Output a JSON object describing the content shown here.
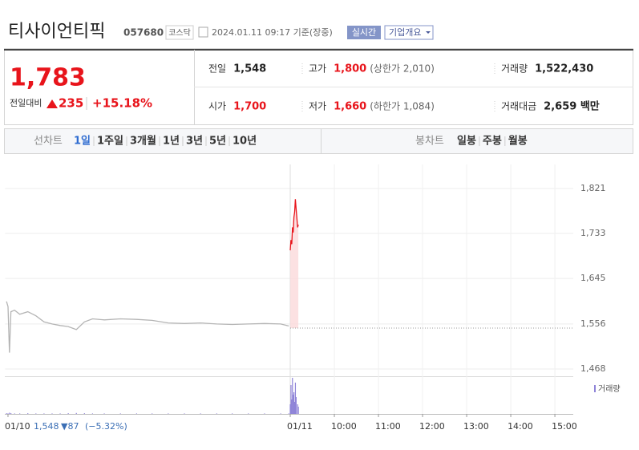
{
  "header": {
    "name": "티사이언티픽",
    "code": "057680",
    "market": "코스닥",
    "timestamp": "2024.01.11 09:17 기준(장중)",
    "realtime": "실시간",
    "company": "기업개요"
  },
  "quote": {
    "price": "1,783",
    "change_label": "전일대비",
    "change": "235",
    "change_pct": "+15.18%",
    "stats": [
      {
        "label": "전일",
        "value": "1,548"
      },
      {
        "label": "고가",
        "value": "1,800",
        "note": "(상한가 2,010)"
      },
      {
        "label": "거래량",
        "value": "1,522,430"
      },
      {
        "label": "시가",
        "value": "1,700"
      },
      {
        "label": "저가",
        "value": "1,660",
        "note": "(하한가 1,084)"
      },
      {
        "label": "거래대금",
        "value": "2,659 백만"
      }
    ]
  },
  "tabs": {
    "line_label": "선차트",
    "periods": [
      "1일",
      "1주일",
      "3개월",
      "1년",
      "3년",
      "5년",
      "10년"
    ],
    "candle_label": "봉차트",
    "candles": [
      "일봉",
      "주봉",
      "월봉"
    ]
  },
  "footer": {
    "date": "01/10",
    "price": "1,548",
    "change": "▼87",
    "pct": "(−5.32%)"
  },
  "chart_data": {
    "type": "line",
    "x": [
      -386,
      -384,
      -382,
      -380,
      -375,
      -368,
      -357,
      -346,
      -335,
      -324,
      -313,
      -302,
      -291,
      -280,
      -269,
      -253,
      -231,
      -209,
      -188,
      -166,
      -144,
      -122,
      -100,
      -79,
      -57,
      -35,
      -13,
      -2,
      0,
      1,
      2,
      3,
      4,
      5,
      6,
      7,
      8,
      10,
      11
    ],
    "series": [
      {
        "color": "#b4b4b4",
        "values": [
          1600,
          1590,
          1500,
          1580,
          1583,
          1575,
          1580,
          1572,
          1560,
          1556,
          1553,
          1551,
          1545,
          1560,
          1566,
          1564,
          1566,
          1565,
          1563,
          1558,
          1557,
          1558,
          1556,
          1555,
          1556,
          1557,
          1556,
          1552,
          null,
          null,
          null,
          null,
          null,
          null,
          null,
          null,
          null,
          null,
          null
        ]
      },
      {
        "color": "#e8141b",
        "values": [
          null,
          null,
          null,
          null,
          null,
          null,
          null,
          null,
          null,
          null,
          null,
          null,
          null,
          null,
          null,
          null,
          null,
          null,
          null,
          null,
          null,
          null,
          null,
          null,
          null,
          null,
          null,
          null,
          1700,
          1720,
          1712,
          1745,
          1735,
          1765,
          1775,
          1800,
          1780,
          1745,
          1750
        ]
      }
    ],
    "baseline": 1548,
    "volume": {
      "name": "거래량",
      "color": "#8f84d8",
      "values": [
        3000,
        2000,
        5000,
        3000,
        2000,
        2000,
        3000,
        2000,
        2000,
        2000,
        2000,
        3000,
        4000,
        3000,
        2000,
        2000,
        2000,
        2000,
        2000,
        2000,
        2000,
        2000,
        2000,
        2000,
        2000,
        2000,
        2000,
        2000,
        40000,
        120000,
        60000,
        150000,
        80000,
        90000,
        50000,
        130000,
        70000,
        40000,
        30000
      ]
    },
    "xlim": [
      -388,
      385
    ],
    "xticks": [
      {
        "value": -384,
        "label": "01/10"
      },
      {
        "value": 0,
        "label": "01/11"
      },
      {
        "value": 60,
        "label": "10:00"
      },
      {
        "value": 120,
        "label": "11:00"
      },
      {
        "value": 180,
        "label": "12:00"
      },
      {
        "value": 240,
        "label": "13:00"
      },
      {
        "value": 300,
        "label": "14:00"
      },
      {
        "value": 360,
        "label": "15:00"
      }
    ],
    "ylim": [
      1457,
      1868
    ],
    "yticks": [
      {
        "value": 1468,
        "label": "1,468"
      },
      {
        "value": 1556,
        "label": "1,556"
      },
      {
        "value": 1645,
        "label": "1,645"
      },
      {
        "value": 1733,
        "label": "1,733"
      },
      {
        "value": 1821,
        "label": "1,821"
      }
    ]
  }
}
